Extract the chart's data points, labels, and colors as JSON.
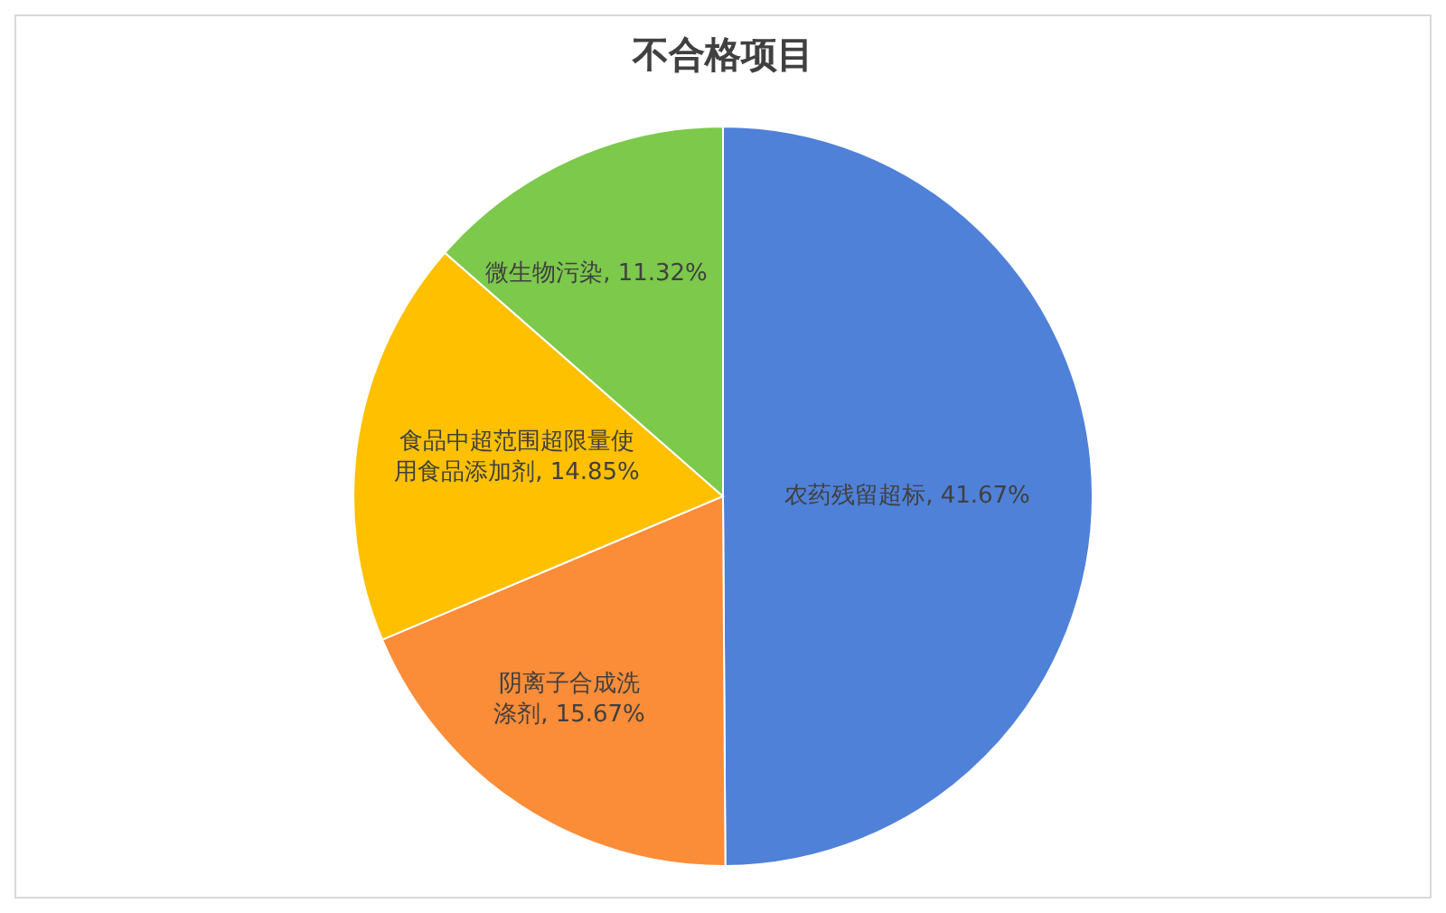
{
  "chart_data": {
    "type": "pie",
    "title": "不合格项目",
    "categories": [
      "农药残留超标",
      "阴离子合成洗涤剂",
      "食品中超范围超限量使用食品添加剂",
      "微生物污染"
    ],
    "values": [
      41.67,
      15.67,
      14.85,
      11.32
    ],
    "colors": [
      "#4f81d9",
      "#fb8c38",
      "#ffc000",
      "#7cc94c"
    ],
    "value_labels": [
      "41.67%",
      "15.67%",
      "14.85%",
      "11.32%"
    ]
  }
}
